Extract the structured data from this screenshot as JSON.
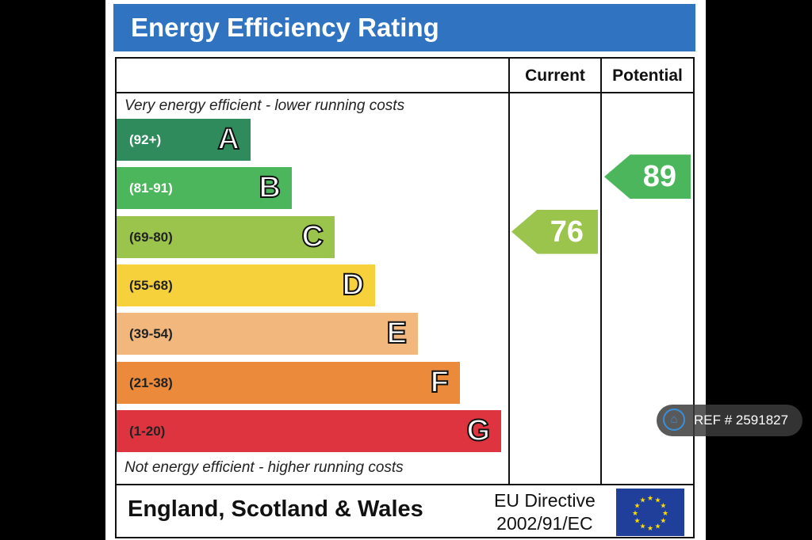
{
  "chart_data": {
    "type": "bar",
    "title": "Energy Efficiency Rating",
    "columns": [
      "Current",
      "Potential"
    ],
    "top_note": "Very energy efficient - lower running costs",
    "bottom_note": "Not energy efficient - higher running costs",
    "bands": [
      {
        "letter": "A",
        "range": "(92+)",
        "color": "#2f8a5c"
      },
      {
        "letter": "B",
        "range": "(81-91)",
        "color": "#4bb65b"
      },
      {
        "letter": "C",
        "range": "(69-80)",
        "color": "#9ac44b"
      },
      {
        "letter": "D",
        "range": "(55-68)",
        "color": "#f7d13c"
      },
      {
        "letter": "E",
        "range": "(39-54)",
        "color": "#f1b77c"
      },
      {
        "letter": "F",
        "range": "(21-38)",
        "color": "#eb8a3b"
      },
      {
        "letter": "G",
        "range": "(1-20)",
        "color": "#de3440"
      }
    ],
    "current": {
      "value": "76",
      "band": "C",
      "color": "#9ac44b"
    },
    "potential": {
      "value": "89",
      "band": "B",
      "color": "#4bb65b"
    }
  },
  "footer": {
    "region": "England, Scotland & Wales",
    "directive_line1": "EU Directive",
    "directive_line2": "2002/91/EC"
  },
  "ref_badge": {
    "text": "REF # 2591827",
    "icon": "home-icon"
  }
}
